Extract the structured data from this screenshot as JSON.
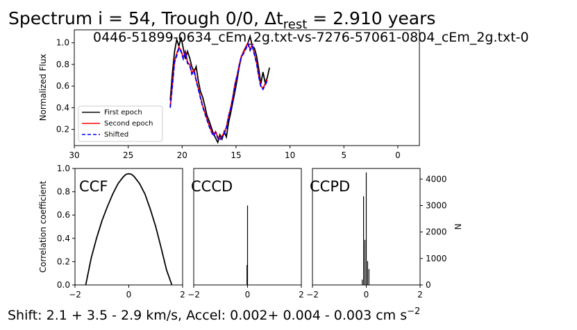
{
  "figure": {
    "title_main": "Spectrum i = 54, Trough 0/0, Δt",
    "title_sub": "rest",
    "title_tail": " = 2.910 years",
    "subtitle": "0446-51899-0634_cEm_2g.txt-vs-7276-57061-0804_cEm_2g.txt-0",
    "footer_prefix": "Shift:   2.1 +   3.5 -   2.9 km/s, Accel: 0.002+ 0.004 - 0.003 cm s",
    "footer_sup": "−2",
    "colors": {
      "first": "#000000",
      "second": "#ff0000",
      "shifted": "#0000ff"
    }
  },
  "chart_data": [
    {
      "type": "line",
      "id": "spectrum",
      "ylabel": "Normalized Flux",
      "xlabel": "",
      "xlim": [
        30,
        -2
      ],
      "ylim": [
        0.05,
        1.12
      ],
      "xticks": [
        30,
        25,
        20,
        15,
        10,
        5,
        0
      ],
      "yticks": [
        0.2,
        0.4,
        0.6,
        0.8,
        1.0
      ],
      "legend": {
        "placement": "lower-left",
        "entries": [
          "First epoch",
          "Second epoch",
          "Shifted"
        ]
      },
      "series": [
        {
          "name": "First epoch",
          "style": "solid",
          "color": "#000000",
          "x": [
            21.1,
            20.9,
            20.7,
            20.5,
            20.3,
            20.1,
            19.9,
            19.7,
            19.5,
            19.3,
            19.1,
            18.9,
            18.7,
            18.5,
            18.3,
            18.1,
            17.9,
            17.7,
            17.5,
            17.3,
            17.1,
            16.9,
            16.7,
            16.5,
            16.3,
            16.1,
            15.9,
            15.7,
            15.5,
            15.3,
            15.1,
            14.9,
            14.7,
            14.5,
            14.3,
            14.1,
            13.9,
            13.7,
            13.5,
            13.3,
            13.1,
            12.9,
            12.7,
            12.5,
            12.3,
            12.1,
            11.9
          ],
          "y": [
            0.47,
            0.72,
            0.92,
            1.03,
            0.97,
            1.05,
            0.95,
            0.85,
            0.92,
            0.86,
            0.78,
            0.73,
            0.78,
            0.65,
            0.55,
            0.5,
            0.42,
            0.33,
            0.28,
            0.22,
            0.16,
            0.12,
            0.08,
            0.15,
            0.11,
            0.18,
            0.13,
            0.26,
            0.35,
            0.45,
            0.55,
            0.66,
            0.78,
            0.87,
            0.92,
            0.96,
            1.0,
            1.06,
            0.97,
            0.95,
            0.88,
            0.76,
            0.62,
            0.73,
            0.63,
            0.68,
            0.77
          ]
        },
        {
          "name": "Second epoch",
          "style": "solid",
          "color": "#ff0000",
          "x": [
            21.1,
            20.9,
            20.7,
            20.5,
            20.3,
            20.1,
            19.9,
            19.7,
            19.5,
            19.3,
            19.1,
            18.9,
            18.7,
            18.5,
            18.3,
            18.1,
            17.9,
            17.7,
            17.5,
            17.3,
            17.1,
            16.9,
            16.7,
            16.5,
            16.3,
            16.1,
            15.9,
            15.7,
            15.5,
            15.3,
            15.1,
            14.9,
            14.7,
            14.5,
            14.3,
            14.1,
            13.9,
            13.7,
            13.5,
            13.3,
            13.1,
            12.9,
            12.7,
            12.5,
            12.3,
            12.1
          ],
          "y": [
            0.41,
            0.62,
            0.83,
            0.9,
            0.96,
            0.93,
            0.86,
            0.92,
            0.82,
            0.8,
            0.72,
            0.75,
            0.66,
            0.58,
            0.5,
            0.42,
            0.36,
            0.3,
            0.24,
            0.19,
            0.15,
            0.18,
            0.13,
            0.11,
            0.14,
            0.17,
            0.22,
            0.32,
            0.4,
            0.5,
            0.62,
            0.7,
            0.8,
            0.88,
            0.91,
            0.95,
            1.0,
            0.94,
            0.98,
            0.9,
            0.82,
            0.7,
            0.6,
            0.58,
            0.62,
            0.66
          ]
        },
        {
          "name": "Shifted",
          "style": "dashed",
          "color": "#0000ff",
          "x": [
            21.1,
            20.9,
            20.7,
            20.5,
            20.3,
            20.1,
            19.9,
            19.7,
            19.5,
            19.3,
            19.1,
            18.9,
            18.7,
            18.5,
            18.3,
            18.1,
            17.9,
            17.7,
            17.5,
            17.3,
            17.1,
            16.9,
            16.7,
            16.5,
            16.3,
            16.1,
            15.9,
            15.7,
            15.5,
            15.3,
            15.1,
            14.9,
            14.7,
            14.5,
            14.3,
            14.1,
            13.9,
            13.7,
            13.5,
            13.3,
            13.1,
            12.9,
            12.7,
            12.5,
            12.3,
            12.1
          ],
          "y": [
            0.4,
            0.6,
            0.82,
            0.88,
            0.95,
            0.92,
            0.85,
            0.91,
            0.81,
            0.79,
            0.71,
            0.74,
            0.65,
            0.57,
            0.49,
            0.41,
            0.35,
            0.29,
            0.23,
            0.18,
            0.14,
            0.17,
            0.12,
            0.1,
            0.13,
            0.16,
            0.21,
            0.31,
            0.39,
            0.49,
            0.61,
            0.69,
            0.79,
            0.87,
            0.9,
            0.94,
            0.99,
            0.93,
            0.97,
            0.89,
            0.81,
            0.69,
            0.59,
            0.57,
            0.61,
            0.65
          ]
        }
      ]
    },
    {
      "type": "line",
      "id": "ccf",
      "label": "CCF",
      "ylabel": "Correlation coefficient",
      "xlim": [
        -2,
        2
      ],
      "ylim": [
        0,
        1
      ],
      "xticks": [
        -2,
        0,
        2
      ],
      "yticks": [
        0.0,
        0.2,
        0.4,
        0.6,
        0.8,
        1.0
      ],
      "x": [
        -1.6,
        -1.4,
        -1.2,
        -1.0,
        -0.8,
        -0.6,
        -0.4,
        -0.2,
        -0.1,
        0.0,
        0.1,
        0.2,
        0.4,
        0.6,
        0.8,
        1.0,
        1.2,
        1.4,
        1.6
      ],
      "y": [
        0.0,
        0.23,
        0.4,
        0.55,
        0.67,
        0.78,
        0.87,
        0.93,
        0.95,
        0.955,
        0.95,
        0.93,
        0.87,
        0.78,
        0.65,
        0.5,
        0.32,
        0.13,
        0.0
      ]
    },
    {
      "type": "bar",
      "id": "cccd",
      "label": "CCCD",
      "xlim": [
        -2,
        2
      ],
      "ymax": 4400,
      "xticks": [
        -2,
        0,
        2
      ],
      "x": [
        -0.02,
        0.0
      ],
      "values": [
        750,
        3000
      ]
    },
    {
      "type": "bar",
      "id": "ccpd",
      "label": "CCPD",
      "ylabel": "N",
      "xlim": [
        -2,
        2
      ],
      "ylim": [
        0,
        4400
      ],
      "xticks": [
        -2,
        0,
        2
      ],
      "yticks": [
        0,
        1000,
        2000,
        3000,
        4000
      ],
      "x": [
        -0.15,
        -0.1,
        -0.05,
        0.0,
        0.05,
        0.1,
        0.15
      ],
      "values": [
        200,
        3350,
        1700,
        4250,
        900,
        600,
        0
      ]
    }
  ]
}
